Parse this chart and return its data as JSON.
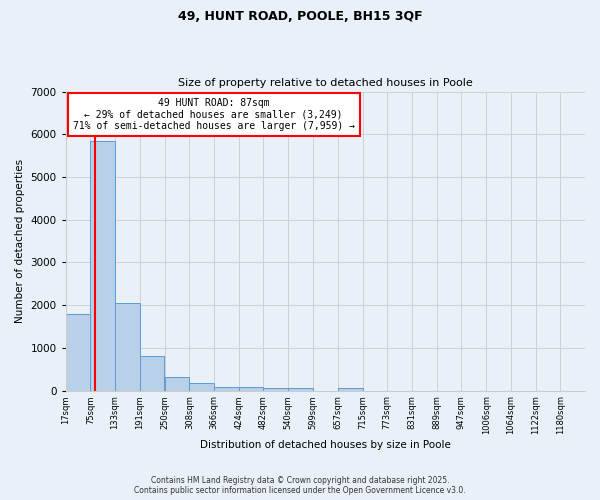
{
  "title_line1": "49, HUNT ROAD, POOLE, BH15 3QF",
  "title_line2": "Size of property relative to detached houses in Poole",
  "xlabel": "Distribution of detached houses by size in Poole",
  "ylabel": "Number of detached properties",
  "bin_edges": [
    17,
    75,
    133,
    191,
    250,
    308,
    366,
    424,
    482,
    540,
    599,
    657,
    715,
    773,
    831,
    889,
    947,
    1006,
    1064,
    1122,
    1180
  ],
  "bar_heights": [
    1800,
    5850,
    2050,
    820,
    320,
    175,
    90,
    75,
    50,
    50,
    0,
    50,
    0,
    0,
    0,
    0,
    0,
    0,
    0,
    0
  ],
  "bar_color": "#b8d0e8",
  "bar_edge_color": "#5b9bd5",
  "subject_x": 87,
  "subject_color": "red",
  "annotation_title": "49 HUNT ROAD: 87sqm",
  "annotation_line2": "← 29% of detached houses are smaller (3,249)",
  "annotation_line3": "71% of semi-detached houses are larger (7,959) →",
  "annotation_box_color": "white",
  "annotation_box_edge_color": "red",
  "ylim": [
    0,
    7000
  ],
  "xlim_min": 17,
  "xlim_max": 1238,
  "yticks": [
    0,
    1000,
    2000,
    3000,
    4000,
    5000,
    6000,
    7000
  ],
  "xtick_labels": [
    "17sqm",
    "75sqm",
    "133sqm",
    "191sqm",
    "250sqm",
    "308sqm",
    "366sqm",
    "424sqm",
    "482sqm",
    "540sqm",
    "599sqm",
    "657sqm",
    "715sqm",
    "773sqm",
    "831sqm",
    "889sqm",
    "947sqm",
    "1006sqm",
    "1064sqm",
    "1122sqm",
    "1180sqm"
  ],
  "grid_color": "#cccccc",
  "bg_color": "#eaf0f8",
  "footer_line1": "Contains HM Land Registry data © Crown copyright and database right 2025.",
  "footer_line2": "Contains public sector information licensed under the Open Government Licence v3.0."
}
